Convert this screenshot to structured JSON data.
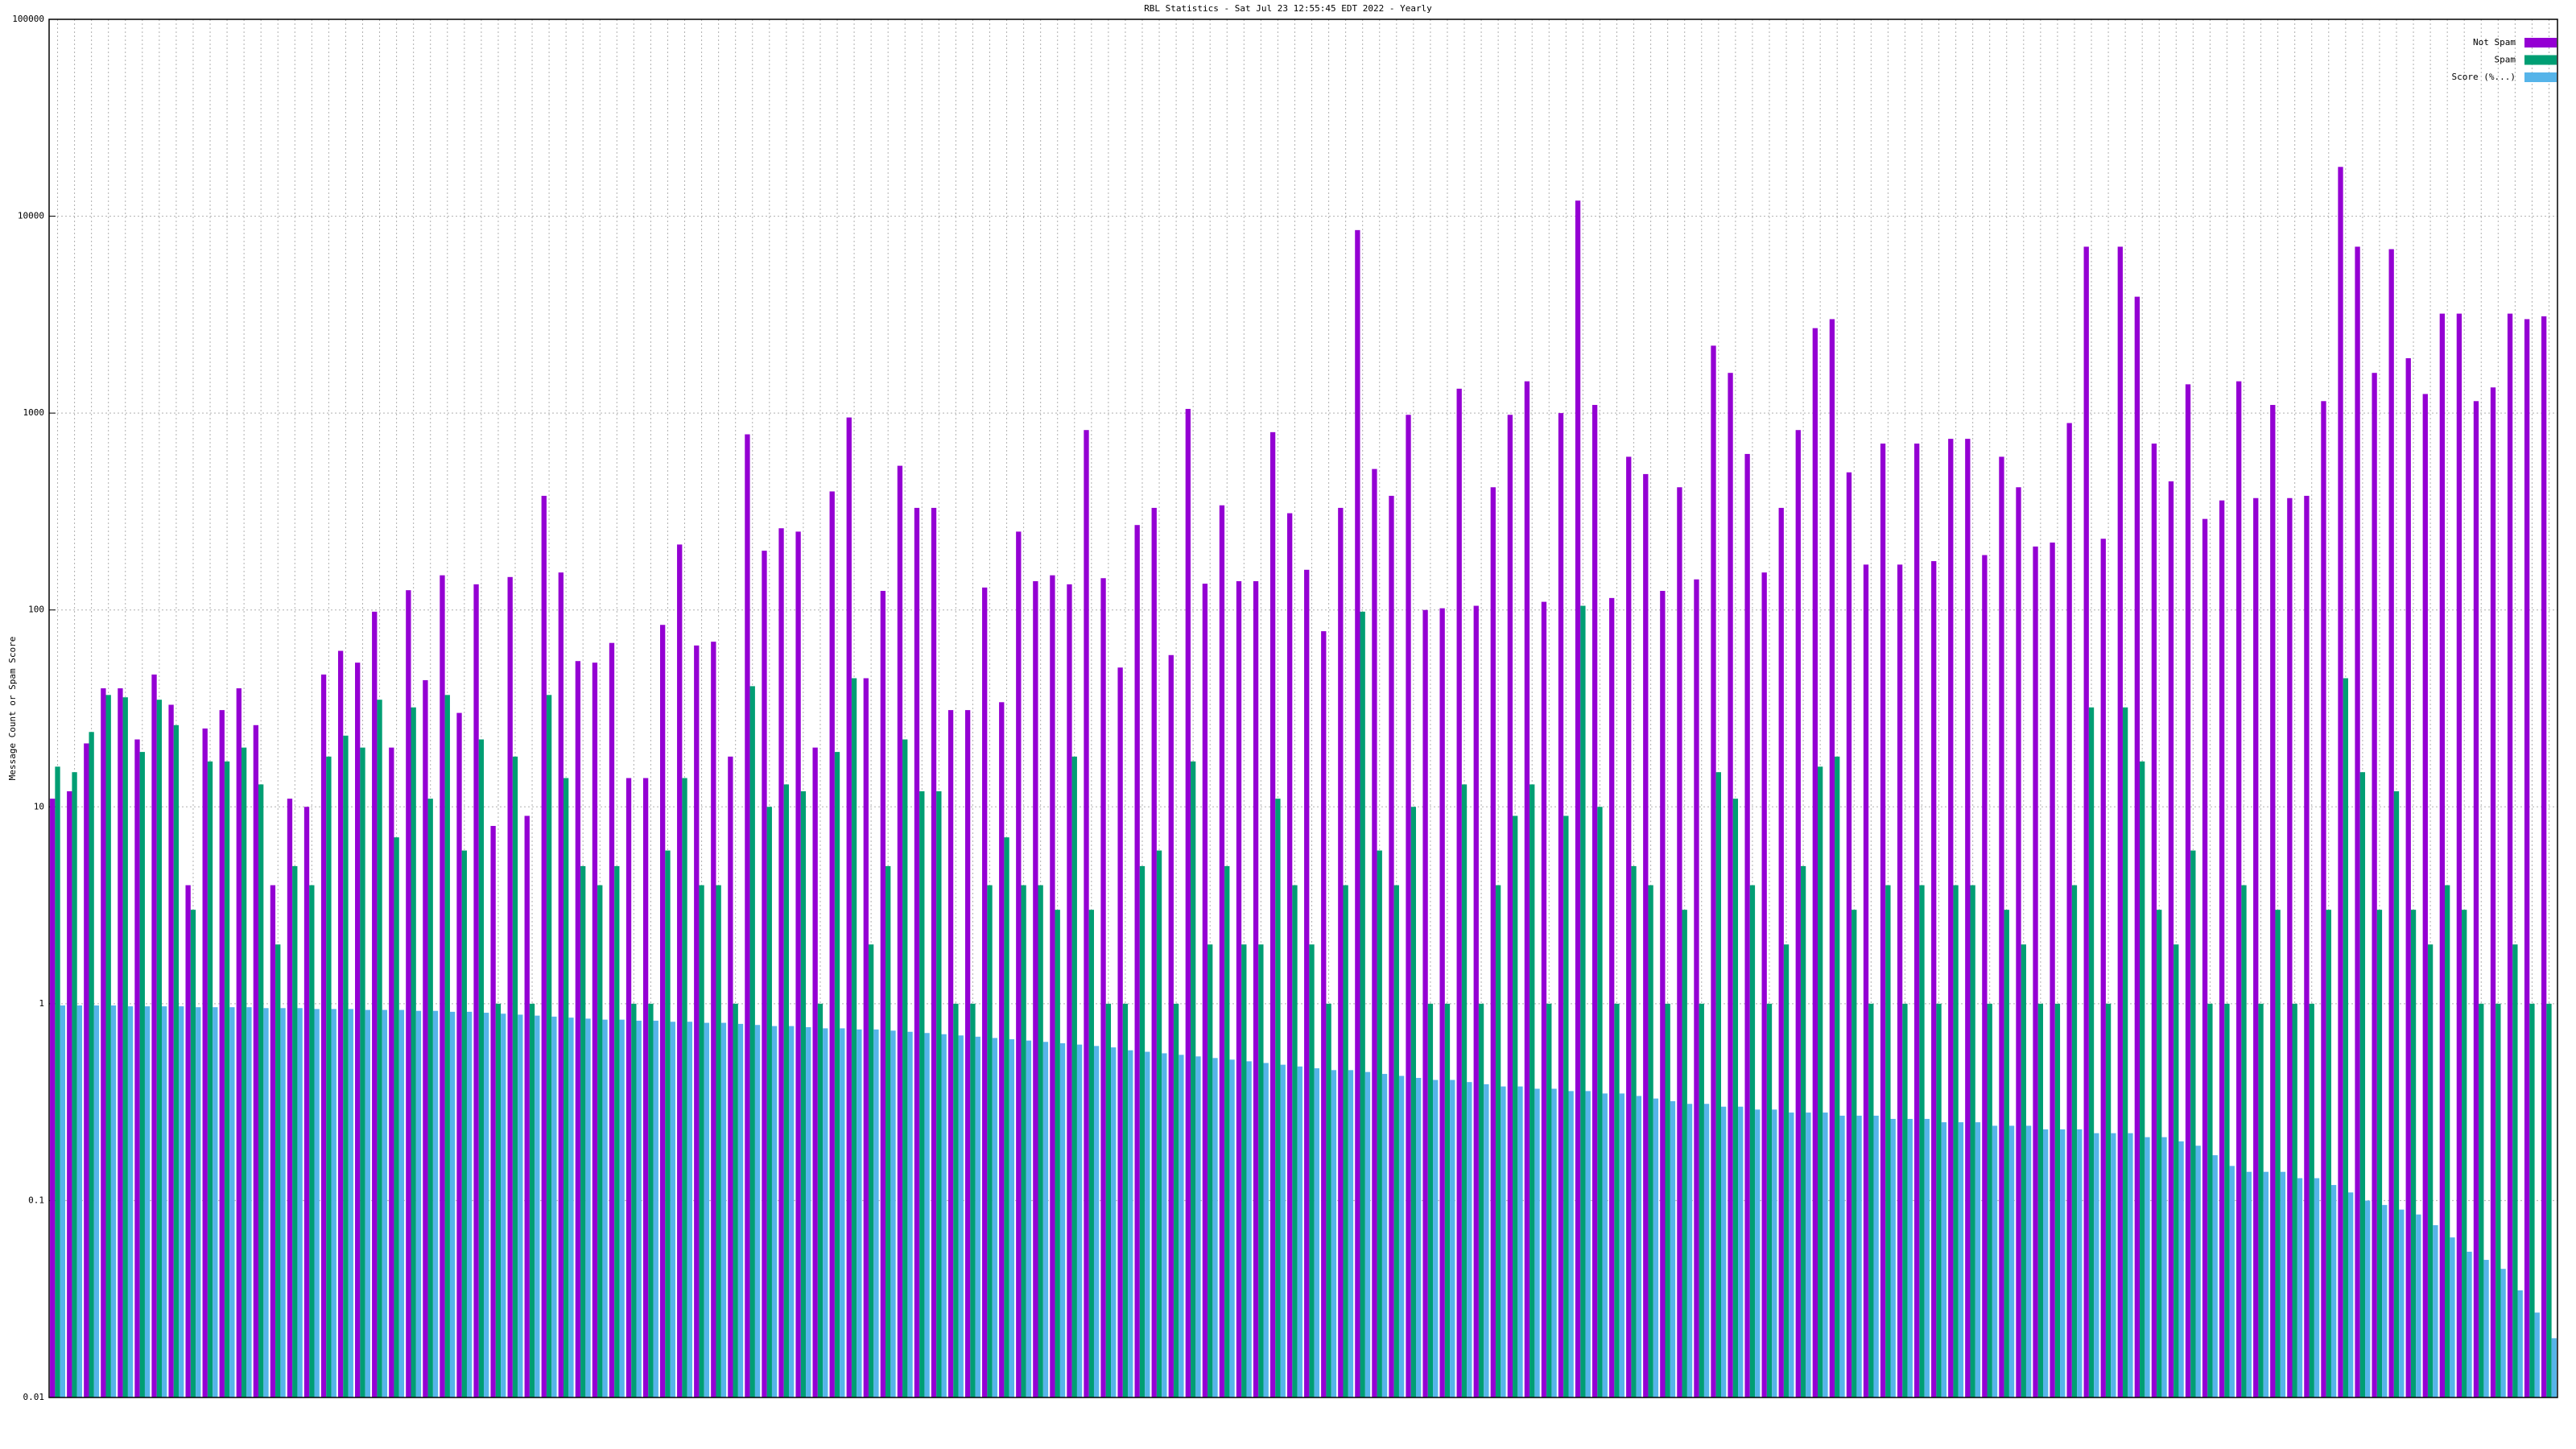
{
  "chart_data": {
    "type": "bar",
    "title": "RBL Statistics - Sat Jul 23 12:55:45 EDT 2022 - Yearly",
    "y_label": "Message Count or Spam Score",
    "log_scale": true,
    "grid": true,
    "legend": "upper right",
    "ylim": [
      0.01,
      100000
    ],
    "yticks": [
      0.01,
      0.1,
      1,
      10,
      100,
      1000,
      10000,
      100000
    ],
    "categories": [
      null,
      null,
      null,
      null,
      null,
      null,
      null,
      null,
      null,
      null,
      null,
      null,
      null,
      null,
      null,
      null,
      null,
      null,
      null,
      null,
      null,
      null,
      null,
      null,
      null,
      null,
      null,
      null,
      null,
      null,
      null,
      null,
      null,
      null,
      null,
      null,
      null,
      null,
      null,
      null,
      null,
      null,
      null,
      null,
      null,
      null,
      null,
      null,
      null,
      null,
      null,
      null,
      null,
      null,
      null,
      null,
      null,
      null,
      null,
      null,
      null,
      null,
      null,
      null,
      null,
      null,
      null,
      null,
      null,
      null,
      null,
      null,
      null,
      null,
      null,
      null,
      null,
      null,
      null,
      null,
      null,
      null,
      null,
      null,
      null,
      null,
      null,
      null,
      null,
      null,
      null,
      null,
      null,
      null,
      null,
      null,
      null,
      null,
      null,
      null,
      null,
      null,
      null,
      null,
      null,
      null,
      null,
      null,
      null,
      null,
      null,
      null,
      null,
      null,
      null,
      null,
      null,
      null,
      null,
      null,
      null,
      null,
      null,
      null,
      null,
      null,
      null,
      null,
      null,
      null,
      null,
      null,
      null,
      null,
      null,
      null,
      null,
      null,
      null,
      null,
      null,
      null,
      null,
      null,
      null,
      null,
      null,
      null
    ],
    "series": [
      {
        "name": "Not Spam",
        "color": "#9400d3",
        "values": [
          11,
          12,
          21,
          40,
          40,
          22,
          47,
          33,
          4,
          25,
          31,
          40,
          26,
          4,
          11,
          10,
          47,
          62,
          54,
          98,
          20,
          126,
          44,
          150,
          30,
          135,
          8,
          147,
          9,
          380,
          155,
          55,
          54,
          68,
          14,
          14,
          84,
          215,
          66,
          69,
          18,
          780,
          200,
          260,
          250,
          20,
          400,
          950,
          45,
          125,
          540,
          330,
          330,
          31,
          31,
          130,
          34,
          250,
          140,
          150,
          135,
          820,
          145,
          51,
          270,
          330,
          59,
          1050,
          136,
          340,
          140,
          140,
          800,
          310,
          160,
          78,
          330,
          8500,
          520,
          380,
          980,
          100,
          102,
          1330,
          105,
          420,
          980,
          1450,
          110,
          1000,
          12000,
          1100,
          115,
          600,
          490,
          125,
          420,
          143,
          2200,
          1600,
          620,
          155,
          330,
          820,
          2700,
          3000,
          500,
          170,
          700,
          170,
          700,
          177,
          740,
          740,
          190,
          600,
          420,
          210,
          220,
          890,
          7000,
          230,
          7000,
          3900,
          700,
          450,
          1400,
          290,
          360,
          1450,
          370,
          1100,
          370,
          380,
          1150,
          17800,
          7000,
          1600,
          6800,
          1900,
          1250,
          3200,
          3200,
          1150,
          1350,
          3200,
          3000,
          3100
        ]
      },
      {
        "name": "Spam",
        "color": "#009e73",
        "values": [
          16,
          15,
          24,
          37,
          36,
          19,
          35,
          26,
          3,
          17,
          17,
          20,
          13,
          2,
          5,
          4,
          18,
          23,
          20,
          35,
          7,
          32,
          11,
          37,
          6,
          22,
          1,
          18,
          1,
          37,
          14,
          5,
          4,
          5,
          1,
          1,
          6,
          14,
          4,
          4,
          1,
          41,
          10,
          13,
          12,
          1,
          19,
          45,
          2,
          5,
          22,
          12,
          12,
          1,
          1,
          4,
          7,
          4,
          4,
          3,
          18,
          3,
          1,
          1,
          5,
          6,
          1,
          17,
          2,
          5,
          2,
          2,
          11,
          4,
          2,
          1,
          4,
          98,
          6,
          4,
          10,
          1,
          1,
          13,
          1,
          4,
          9,
          13,
          1,
          9,
          105,
          10,
          1,
          5,
          4,
          1,
          3,
          1,
          15,
          11,
          4,
          1,
          2,
          5,
          16,
          18,
          3,
          1,
          4,
          1,
          4,
          1,
          4,
          4,
          1,
          3,
          2,
          1,
          1,
          4,
          32,
          1,
          32,
          17,
          3,
          2,
          6,
          1,
          1,
          4,
          1,
          3,
          1,
          1,
          3,
          45,
          15,
          3,
          12,
          3,
          2,
          4,
          3,
          1,
          1,
          2,
          1,
          1
        ]
      },
      {
        "name": "Score (%...)",
        "color": "#56b4e9",
        "values": [
          0.98,
          0.98,
          0.98,
          0.98,
          0.97,
          0.97,
          0.97,
          0.97,
          0.96,
          0.96,
          0.96,
          0.96,
          0.95,
          0.95,
          0.95,
          0.94,
          0.94,
          0.94,
          0.93,
          0.93,
          0.93,
          0.92,
          0.92,
          0.91,
          0.91,
          0.9,
          0.89,
          0.88,
          0.87,
          0.86,
          0.85,
          0.84,
          0.83,
          0.83,
          0.82,
          0.82,
          0.81,
          0.81,
          0.8,
          0.8,
          0.79,
          0.78,
          0.77,
          0.77,
          0.76,
          0.75,
          0.75,
          0.74,
          0.74,
          0.73,
          0.72,
          0.71,
          0.7,
          0.69,
          0.68,
          0.67,
          0.66,
          0.65,
          0.64,
          0.63,
          0.62,
          0.61,
          0.6,
          0.58,
          0.57,
          0.56,
          0.55,
          0.54,
          0.53,
          0.52,
          0.51,
          0.5,
          0.49,
          0.48,
          0.47,
          0.46,
          0.46,
          0.45,
          0.44,
          0.43,
          0.42,
          0.41,
          0.41,
          0.4,
          0.39,
          0.38,
          0.38,
          0.37,
          0.37,
          0.36,
          0.36,
          0.35,
          0.35,
          0.34,
          0.33,
          0.32,
          0.31,
          0.31,
          0.3,
          0.3,
          0.29,
          0.29,
          0.28,
          0.28,
          0.28,
          0.27,
          0.27,
          0.27,
          0.26,
          0.26,
          0.26,
          0.25,
          0.25,
          0.25,
          0.24,
          0.24,
          0.24,
          0.23,
          0.23,
          0.23,
          0.22,
          0.22,
          0.22,
          0.21,
          0.21,
          0.2,
          0.19,
          0.17,
          0.15,
          0.14,
          0.14,
          0.14,
          0.13,
          0.13,
          0.12,
          0.11,
          0.1,
          0.095,
          0.09,
          0.085,
          0.075,
          0.065,
          0.055,
          0.05,
          0.045,
          0.035,
          0.027,
          0.02
        ]
      }
    ]
  }
}
